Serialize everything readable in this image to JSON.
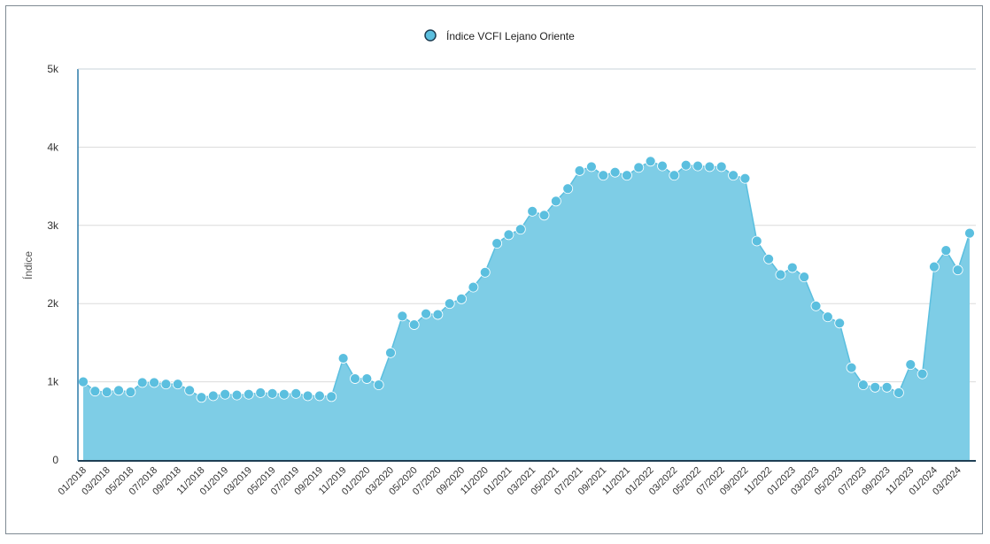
{
  "chart_data": {
    "type": "area",
    "title": "",
    "xlabel": "",
    "ylabel": "Índice",
    "ylim": [
      0,
      5000
    ],
    "yticks": [
      0,
      1000,
      2000,
      3000,
      4000,
      5000
    ],
    "ytick_labels": [
      "0",
      "1k",
      "2k",
      "3k",
      "4k",
      "5k"
    ],
    "legend": {
      "position": "top-center"
    },
    "grid": true,
    "colors": {
      "fill": "#7ecde6",
      "line": "#5bbfdf",
      "marker": "#5bbfdf",
      "frame": "#2a7aa8"
    },
    "x": [
      "01/2018",
      "02/2018",
      "03/2018",
      "04/2018",
      "05/2018",
      "06/2018",
      "07/2018",
      "08/2018",
      "09/2018",
      "10/2018",
      "11/2018",
      "12/2018",
      "01/2019",
      "02/2019",
      "03/2019",
      "04/2019",
      "05/2019",
      "06/2019",
      "07/2019",
      "08/2019",
      "09/2019",
      "10/2019",
      "11/2019",
      "12/2019",
      "01/2020",
      "02/2020",
      "03/2020",
      "04/2020",
      "05/2020",
      "06/2020",
      "07/2020",
      "08/2020",
      "09/2020",
      "10/2020",
      "11/2020",
      "12/2020",
      "01/2021",
      "02/2021",
      "03/2021",
      "04/2021",
      "05/2021",
      "06/2021",
      "07/2021",
      "08/2021",
      "09/2021",
      "10/2021",
      "11/2021",
      "12/2021",
      "01/2022",
      "02/2022",
      "03/2022",
      "04/2022",
      "05/2022",
      "06/2022",
      "07/2022",
      "08/2022",
      "09/2022",
      "10/2022",
      "11/2022",
      "12/2022",
      "01/2023",
      "02/2023",
      "03/2023",
      "04/2023",
      "05/2023",
      "06/2023",
      "07/2023",
      "08/2023",
      "09/2023",
      "10/2023",
      "11/2023",
      "12/2023",
      "01/2024",
      "02/2024",
      "03/2024",
      "04/2024"
    ],
    "x_tick_labels": [
      "01/2018",
      "03/2018",
      "05/2018",
      "07/2018",
      "09/2018",
      "11/2018",
      "01/2019",
      "03/2019",
      "05/2019",
      "07/2019",
      "09/2019",
      "11/2019",
      "01/2020",
      "03/2020",
      "05/2020",
      "07/2020",
      "09/2020",
      "11/2020",
      "01/2021",
      "03/2021",
      "05/2021",
      "07/2021",
      "09/2021",
      "11/2021",
      "01/2022",
      "03/2022",
      "05/2022",
      "07/2022",
      "09/2022",
      "11/2022",
      "01/2023",
      "03/2023",
      "05/2023",
      "07/2023",
      "09/2023",
      "11/2023",
      "01/2024",
      "03/2024"
    ],
    "series": [
      {
        "name": "Índice VCFI Lejano Oriente",
        "values": [
          1000,
          880,
          870,
          890,
          870,
          990,
          990,
          970,
          970,
          890,
          800,
          820,
          840,
          830,
          840,
          860,
          850,
          840,
          850,
          820,
          820,
          810,
          1300,
          1040,
          1040,
          960,
          1370,
          1840,
          1730,
          1870,
          1860,
          2000,
          2060,
          2210,
          2400,
          2770,
          2880,
          2950,
          3180,
          3130,
          3310,
          3470,
          3700,
          3750,
          3640,
          3680,
          3640,
          3740,
          3820,
          3760,
          3640,
          3770,
          3760,
          3750,
          3750,
          3640,
          3600,
          2800,
          2570,
          2370,
          2460,
          2340,
          1970,
          1830,
          1750,
          1180,
          960,
          930,
          930,
          860,
          1220,
          1100,
          2470,
          2680,
          2430,
          2900
        ]
      }
    ]
  }
}
